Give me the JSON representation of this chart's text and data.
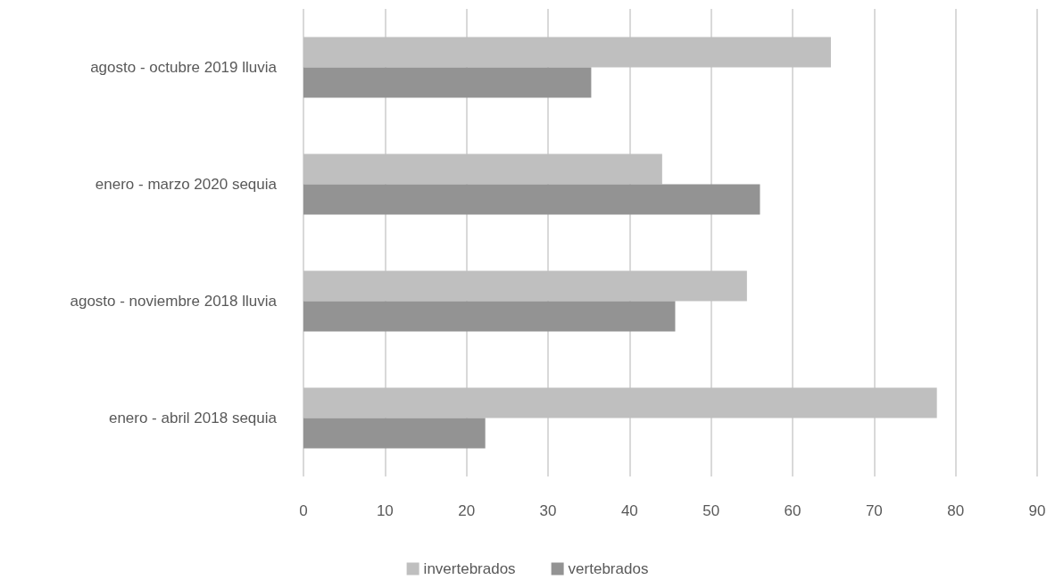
{
  "chart_data": {
    "type": "bar",
    "orientation": "horizontal",
    "categories": [
      "agosto - octubre 2019 lluvia",
      "enero - marzo 2020 sequia",
      "agosto - noviembre 2018 lluvia",
      "enero - abril 2018 sequia"
    ],
    "series": [
      {
        "name": "invertebrados",
        "color": "#bfbfbf",
        "values": [
          64.7,
          44.0,
          54.4,
          77.7
        ]
      },
      {
        "name": "vertebrados",
        "color": "#939393",
        "values": [
          35.3,
          56.0,
          45.6,
          22.3
        ]
      }
    ],
    "xlim": [
      0,
      90
    ],
    "xticks": [
      0,
      10,
      20,
      30,
      40,
      50,
      60,
      70,
      80,
      90
    ],
    "grid": "x",
    "legend": "bottom"
  }
}
